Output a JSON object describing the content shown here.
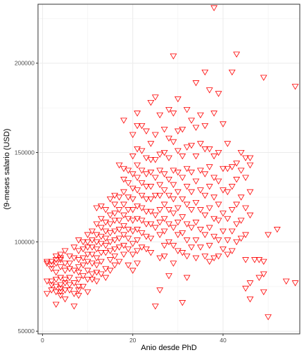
{
  "chart_data": {
    "type": "scatter",
    "title": "",
    "xlabel": "Anio desde PhD",
    "ylabel": "(9-meses salario (USD)",
    "xlim": [
      -1,
      57
    ],
    "ylim": [
      48500,
      233000
    ],
    "x_ticks": [
      0,
      20,
      40
    ],
    "y_ticks": [
      50000,
      100000,
      150000,
      200000
    ],
    "y_tick_labels": [
      "50000",
      "100000",
      "150000",
      "200000"
    ],
    "grid": true,
    "marker": "inverted-triangle",
    "marker_color": "#ff0000",
    "points": [
      [
        1,
        89000
      ],
      [
        1,
        88000
      ],
      [
        1,
        78000
      ],
      [
        1,
        71000
      ],
      [
        2,
        89000
      ],
      [
        2,
        87000
      ],
      [
        2,
        85000
      ],
      [
        2,
        78000
      ],
      [
        2,
        76000
      ],
      [
        2,
        73000
      ],
      [
        3,
        92000
      ],
      [
        3,
        90000
      ],
      [
        3,
        88000
      ],
      [
        3,
        83000
      ],
      [
        3,
        79000
      ],
      [
        3,
        75000
      ],
      [
        3,
        72000
      ],
      [
        3,
        65000
      ],
      [
        4,
        93000
      ],
      [
        4,
        91000
      ],
      [
        4,
        90000
      ],
      [
        4,
        86000
      ],
      [
        4,
        80000
      ],
      [
        4,
        76000
      ],
      [
        4,
        74000
      ],
      [
        4,
        72000
      ],
      [
        4,
        70000
      ],
      [
        5,
        95000
      ],
      [
        5,
        88000
      ],
      [
        5,
        84000
      ],
      [
        5,
        79000
      ],
      [
        5,
        77000
      ],
      [
        5,
        73000
      ],
      [
        5,
        68000
      ],
      [
        6,
        92000
      ],
      [
        6,
        88000
      ],
      [
        6,
        85000
      ],
      [
        6,
        80000
      ],
      [
        6,
        76000
      ],
      [
        6,
        73000
      ],
      [
        7,
        97000
      ],
      [
        7,
        91000
      ],
      [
        7,
        84000
      ],
      [
        7,
        77000
      ],
      [
        7,
        71000
      ],
      [
        7,
        64000
      ],
      [
        8,
        101000
      ],
      [
        8,
        95000
      ],
      [
        8,
        90000
      ],
      [
        8,
        86000
      ],
      [
        8,
        83000
      ],
      [
        8,
        79000
      ],
      [
        8,
        75000
      ],
      [
        8,
        73000
      ],
      [
        8,
        70000
      ],
      [
        9,
        100000
      ],
      [
        9,
        96000
      ],
      [
        9,
        91000
      ],
      [
        9,
        87000
      ],
      [
        9,
        81000
      ],
      [
        9,
        75000
      ],
      [
        10,
        104000
      ],
      [
        10,
        100000
      ],
      [
        10,
        97000
      ],
      [
        10,
        93000
      ],
      [
        10,
        89000
      ],
      [
        10,
        84000
      ],
      [
        10,
        79000
      ],
      [
        10,
        72000
      ],
      [
        11,
        106000
      ],
      [
        11,
        101000
      ],
      [
        11,
        97000
      ],
      [
        11,
        93000
      ],
      [
        11,
        88000
      ],
      [
        11,
        82000
      ],
      [
        11,
        79000
      ],
      [
        12,
        119000
      ],
      [
        12,
        110000
      ],
      [
        12,
        104000
      ],
      [
        12,
        100000
      ],
      [
        12,
        96000
      ],
      [
        12,
        91000
      ],
      [
        12,
        87000
      ],
      [
        12,
        83000
      ],
      [
        12,
        78000
      ],
      [
        13,
        120000
      ],
      [
        13,
        113000
      ],
      [
        13,
        108000
      ],
      [
        13,
        103000
      ],
      [
        13,
        99000
      ],
      [
        13,
        94000
      ],
      [
        13,
        89000
      ],
      [
        13,
        82000
      ],
      [
        14,
        118000
      ],
      [
        14,
        111000
      ],
      [
        14,
        106000
      ],
      [
        14,
        102000
      ],
      [
        14,
        98000
      ],
      [
        14,
        94000
      ],
      [
        14,
        85000
      ],
      [
        14,
        80000
      ],
      [
        15,
        124000
      ],
      [
        15,
        115000
      ],
      [
        15,
        110000
      ],
      [
        15,
        105000
      ],
      [
        15,
        100000
      ],
      [
        15,
        95000
      ],
      [
        15,
        90000
      ],
      [
        15,
        84000
      ],
      [
        16,
        126000
      ],
      [
        16,
        121000
      ],
      [
        16,
        116000
      ],
      [
        16,
        112000
      ],
      [
        16,
        106000
      ],
      [
        16,
        101000
      ],
      [
        16,
        96000
      ],
      [
        16,
        92000
      ],
      [
        16,
        87000
      ],
      [
        17,
        143000
      ],
      [
        17,
        125000
      ],
      [
        17,
        118000
      ],
      [
        17,
        112000
      ],
      [
        17,
        107000
      ],
      [
        17,
        102000
      ],
      [
        17,
        97000
      ],
      [
        17,
        89000
      ],
      [
        18,
        168000
      ],
      [
        18,
        141000
      ],
      [
        18,
        135000
      ],
      [
        18,
        128000
      ],
      [
        18,
        121000
      ],
      [
        18,
        115000
      ],
      [
        18,
        109000
      ],
      [
        18,
        104000
      ],
      [
        18,
        98000
      ],
      [
        18,
        93000
      ],
      [
        19,
        140000
      ],
      [
        19,
        133000
      ],
      [
        19,
        125000
      ],
      [
        19,
        118000
      ],
      [
        19,
        113000
      ],
      [
        19,
        107000
      ],
      [
        19,
        102000
      ],
      [
        19,
        96000
      ],
      [
        19,
        87000
      ],
      [
        20,
        160000
      ],
      [
        20,
        148000
      ],
      [
        20,
        138000
      ],
      [
        20,
        130000
      ],
      [
        20,
        124000
      ],
      [
        20,
        118000
      ],
      [
        20,
        112000
      ],
      [
        20,
        106000
      ],
      [
        20,
        99000
      ],
      [
        20,
        93000
      ],
      [
        20,
        84000
      ],
      [
        21,
        172000
      ],
      [
        21,
        165000
      ],
      [
        21,
        152000
      ],
      [
        21,
        143000
      ],
      [
        21,
        136000
      ],
      [
        21,
        129000
      ],
      [
        21,
        120000
      ],
      [
        21,
        113000
      ],
      [
        21,
        107000
      ],
      [
        21,
        101000
      ],
      [
        21,
        95000
      ],
      [
        21,
        88000
      ],
      [
        22,
        165000
      ],
      [
        22,
        151000
      ],
      [
        22,
        140000
      ],
      [
        22,
        133000
      ],
      [
        22,
        126000
      ],
      [
        22,
        119000
      ],
      [
        22,
        112000
      ],
      [
        22,
        105000
      ],
      [
        22,
        97000
      ],
      [
        23,
        162000
      ],
      [
        23,
        147000
      ],
      [
        23,
        138000
      ],
      [
        23,
        131000
      ],
      [
        23,
        124000
      ],
      [
        23,
        117000
      ],
      [
        23,
        110000
      ],
      [
        23,
        103000
      ],
      [
        23,
        96000
      ],
      [
        24,
        178000
      ],
      [
        24,
        155000
      ],
      [
        24,
        146000
      ],
      [
        24,
        139000
      ],
      [
        24,
        131000
      ],
      [
        24,
        124000
      ],
      [
        24,
        117000
      ],
      [
        24,
        110000
      ],
      [
        24,
        102000
      ],
      [
        24,
        94000
      ],
      [
        25,
        181000
      ],
      [
        25,
        160000
      ],
      [
        25,
        146000
      ],
      [
        25,
        136000
      ],
      [
        25,
        126000
      ],
      [
        25,
        115000
      ],
      [
        25,
        108000
      ],
      [
        25,
        64000
      ],
      [
        26,
        171000
      ],
      [
        26,
        149000
      ],
      [
        26,
        140000
      ],
      [
        26,
        132000
      ],
      [
        26,
        126000
      ],
      [
        26,
        118000
      ],
      [
        26,
        111000
      ],
      [
        26,
        104000
      ],
      [
        26,
        91000
      ],
      [
        26,
        73000
      ],
      [
        27,
        163000
      ],
      [
        27,
        150000
      ],
      [
        27,
        138000
      ],
      [
        27,
        129000
      ],
      [
        27,
        121000
      ],
      [
        27,
        113000
      ],
      [
        27,
        106000
      ],
      [
        27,
        98000
      ],
      [
        27,
        92000
      ],
      [
        28,
        174000
      ],
      [
        28,
        158000
      ],
      [
        28,
        147000
      ],
      [
        28,
        135000
      ],
      [
        28,
        126000
      ],
      [
        28,
        118000
      ],
      [
        28,
        110000
      ],
      [
        28,
        100000
      ],
      [
        28,
        81000
      ],
      [
        29,
        204000
      ],
      [
        29,
        172000
      ],
      [
        29,
        156000
      ],
      [
        29,
        140000
      ],
      [
        29,
        132000
      ],
      [
        29,
        124000
      ],
      [
        29,
        116000
      ],
      [
        29,
        108000
      ],
      [
        29,
        98000
      ],
      [
        29,
        88000
      ],
      [
        30,
        180000
      ],
      [
        30,
        162000
      ],
      [
        30,
        151000
      ],
      [
        30,
        139000
      ],
      [
        30,
        128000
      ],
      [
        30,
        119000
      ],
      [
        30,
        111000
      ],
      [
        30,
        104000
      ],
      [
        30,
        95000
      ],
      [
        31,
        163000
      ],
      [
        31,
        148000
      ],
      [
        31,
        136000
      ],
      [
        31,
        124000
      ],
      [
        31,
        114000
      ],
      [
        31,
        105000
      ],
      [
        31,
        94000
      ],
      [
        31,
        66000
      ],
      [
        32,
        174000
      ],
      [
        32,
        153000
      ],
      [
        32,
        141000
      ],
      [
        32,
        131000
      ],
      [
        32,
        121000
      ],
      [
        32,
        110000
      ],
      [
        32,
        101000
      ],
      [
        32,
        92000
      ],
      [
        32,
        80000
      ],
      [
        33,
        168000
      ],
      [
        33,
        154000
      ],
      [
        33,
        139000
      ],
      [
        33,
        128000
      ],
      [
        33,
        118000
      ],
      [
        33,
        108000
      ],
      [
        33,
        97000
      ],
      [
        34,
        189000
      ],
      [
        34,
        164000
      ],
      [
        34,
        148000
      ],
      [
        34,
        134000
      ],
      [
        34,
        122000
      ],
      [
        34,
        111000
      ],
      [
        34,
        101000
      ],
      [
        34,
        91000
      ],
      [
        35,
        171000
      ],
      [
        35,
        155000
      ],
      [
        35,
        140000
      ],
      [
        35,
        129000
      ],
      [
        35,
        118000
      ],
      [
        35,
        107000
      ],
      [
        35,
        97000
      ],
      [
        36,
        195000
      ],
      [
        36,
        165000
      ],
      [
        36,
        152000
      ],
      [
        36,
        138000
      ],
      [
        36,
        126000
      ],
      [
        36,
        115000
      ],
      [
        36,
        104000
      ],
      [
        36,
        92000
      ],
      [
        37,
        185000
      ],
      [
        37,
        152000
      ],
      [
        37,
        142000
      ],
      [
        37,
        131000
      ],
      [
        37,
        119000
      ],
      [
        37,
        108000
      ],
      [
        37,
        98000
      ],
      [
        37,
        89000
      ],
      [
        38,
        231000
      ],
      [
        38,
        172000
      ],
      [
        38,
        148000
      ],
      [
        38,
        136000
      ],
      [
        38,
        125000
      ],
      [
        38,
        113000
      ],
      [
        38,
        103000
      ],
      [
        38,
        91000
      ],
      [
        39,
        183000
      ],
      [
        39,
        150000
      ],
      [
        39,
        134000
      ],
      [
        39,
        121000
      ],
      [
        39,
        112000
      ],
      [
        39,
        101000
      ],
      [
        39,
        92000
      ],
      [
        40,
        166000
      ],
      [
        40,
        141000
      ],
      [
        40,
        129000
      ],
      [
        40,
        116000
      ],
      [
        40,
        106000
      ],
      [
        40,
        96000
      ],
      [
        41,
        155000
      ],
      [
        41,
        141000
      ],
      [
        41,
        128000
      ],
      [
        41,
        113000
      ],
      [
        41,
        101000
      ],
      [
        41,
        93000
      ],
      [
        42,
        195000
      ],
      [
        42,
        142000
      ],
      [
        42,
        131000
      ],
      [
        42,
        118000
      ],
      [
        42,
        106000
      ],
      [
        42,
        95000
      ],
      [
        43,
        205000
      ],
      [
        43,
        144000
      ],
      [
        43,
        135000
      ],
      [
        43,
        121000
      ],
      [
        43,
        110000
      ],
      [
        43,
        100000
      ],
      [
        44,
        150000
      ],
      [
        44,
        140000
      ],
      [
        44,
        125000
      ],
      [
        44,
        112000
      ],
      [
        44,
        102000
      ],
      [
        45,
        147000
      ],
      [
        45,
        136000
      ],
      [
        45,
        119000
      ],
      [
        45,
        104000
      ],
      [
        45,
        90000
      ],
      [
        45,
        74000
      ],
      [
        46,
        147000
      ],
      [
        46,
        143000
      ],
      [
        46,
        128000
      ],
      [
        46,
        115000
      ],
      [
        46,
        77000
      ],
      [
        46,
        68000
      ],
      [
        47,
        90000
      ],
      [
        48,
        90000
      ],
      [
        48,
        80000
      ],
      [
        49,
        192000
      ],
      [
        49,
        89000
      ],
      [
        49,
        82000
      ],
      [
        49,
        72000
      ],
      [
        50,
        104000
      ],
      [
        50,
        58000
      ],
      [
        52,
        107000
      ],
      [
        54,
        78000
      ],
      [
        56,
        187000
      ],
      [
        56,
        77000
      ]
    ]
  }
}
